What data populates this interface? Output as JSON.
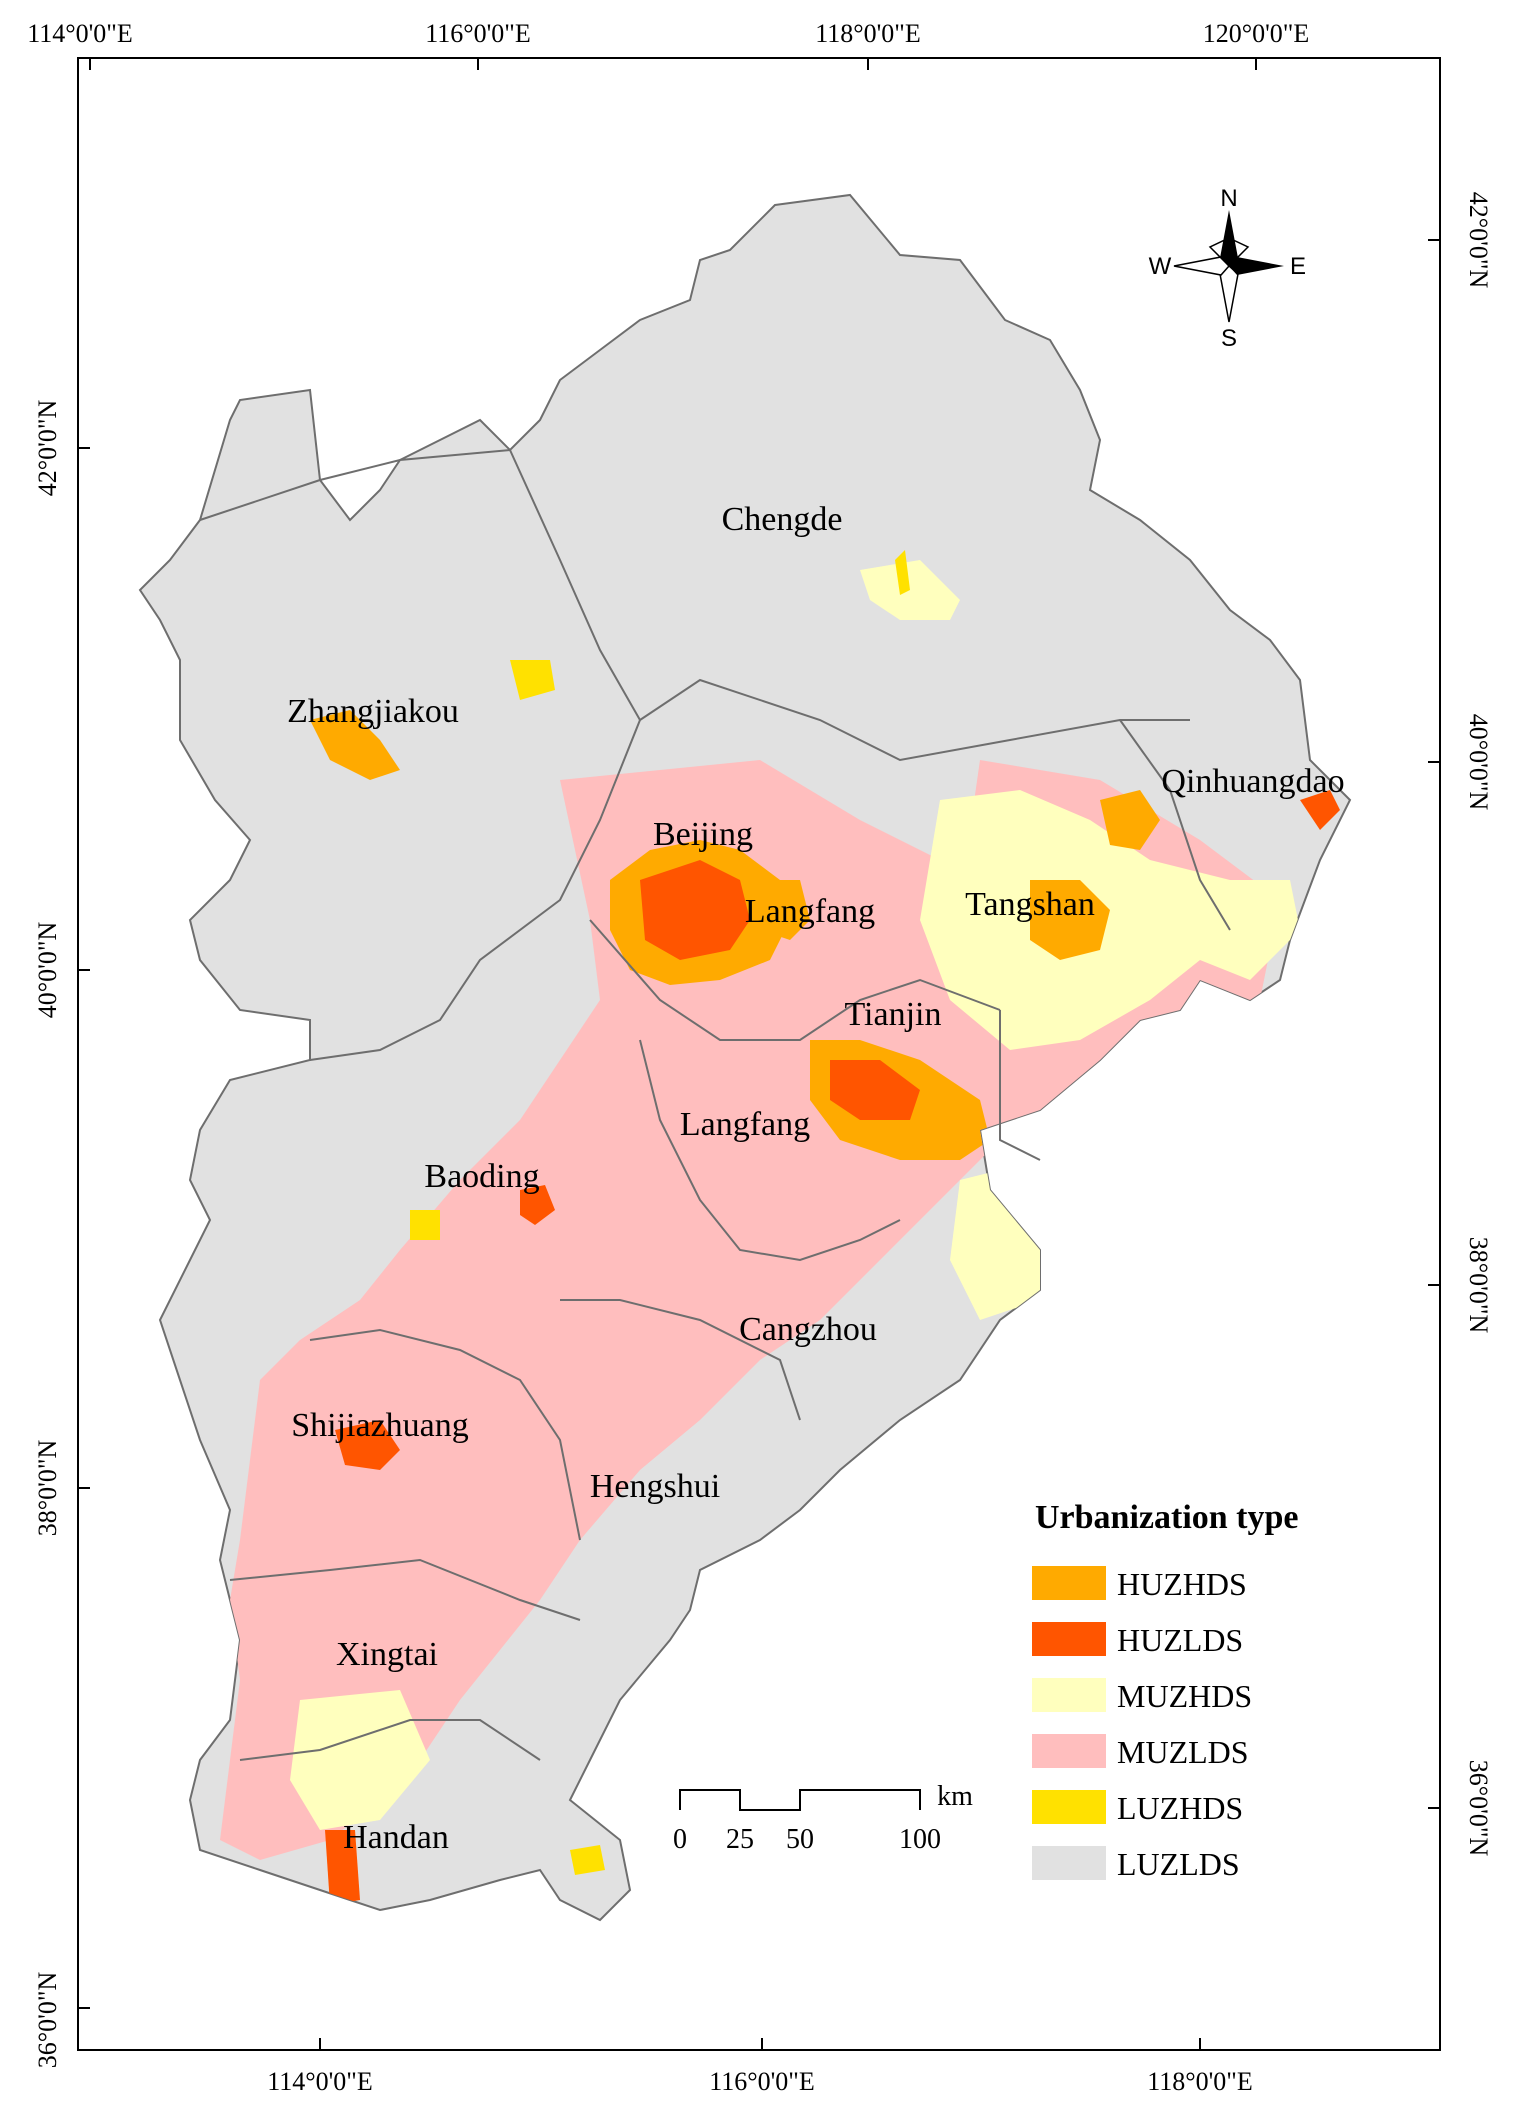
{
  "graticule": {
    "top_labels": [
      "114°0'0\"E",
      "116°0'0\"E",
      "118°0'0\"E",
      "120°0'0\"E"
    ],
    "bottom_labels": [
      "114°0'0\"E",
      "116°0'0\"E",
      "118°0'0\"E"
    ],
    "left_labels": [
      "42°0'0\"N",
      "40°0'0\"N",
      "38°0'0\"N",
      "36°0'0\"N"
    ],
    "right_labels": [
      "42°0'0\"N",
      "40°0'0\"N",
      "38°0'0\"N",
      "36°0'0\"N"
    ]
  },
  "cities": [
    {
      "name": "Chengde"
    },
    {
      "name": "Zhangjiakou"
    },
    {
      "name": "Qinhuangdao"
    },
    {
      "name": "Beijing"
    },
    {
      "name": "Langfang"
    },
    {
      "name": "Tangshan"
    },
    {
      "name": "Tianjin"
    },
    {
      "name": "Langfang"
    },
    {
      "name": "Baoding"
    },
    {
      "name": "Cangzhou"
    },
    {
      "name": "Shijiazhuang"
    },
    {
      "name": "Hengshui"
    },
    {
      "name": "Xingtai"
    },
    {
      "name": "Handan"
    }
  ],
  "compass": {
    "n": "N",
    "s": "S",
    "e": "E",
    "w": "W"
  },
  "scale_bar": {
    "ticks": [
      "0",
      "25",
      "50",
      "100"
    ],
    "unit": "km"
  },
  "legend": {
    "title": "Urbanization type",
    "items": [
      {
        "label": "HUZHDS",
        "color": "#ffaa00"
      },
      {
        "label": "HUZLDS",
        "color": "#ff5500"
      },
      {
        "label": "MUZHDS",
        "color": "#ffffbe"
      },
      {
        "label": "MUZLDS",
        "color": "#ffbebe"
      },
      {
        "label": "LUZHDS",
        "color": "#ffe100"
      },
      {
        "label": "LUZLDS",
        "color": "#e1e1e1"
      }
    ]
  },
  "colors": {
    "base": "#e1e1e1",
    "boundary": "#6e6e6e"
  }
}
